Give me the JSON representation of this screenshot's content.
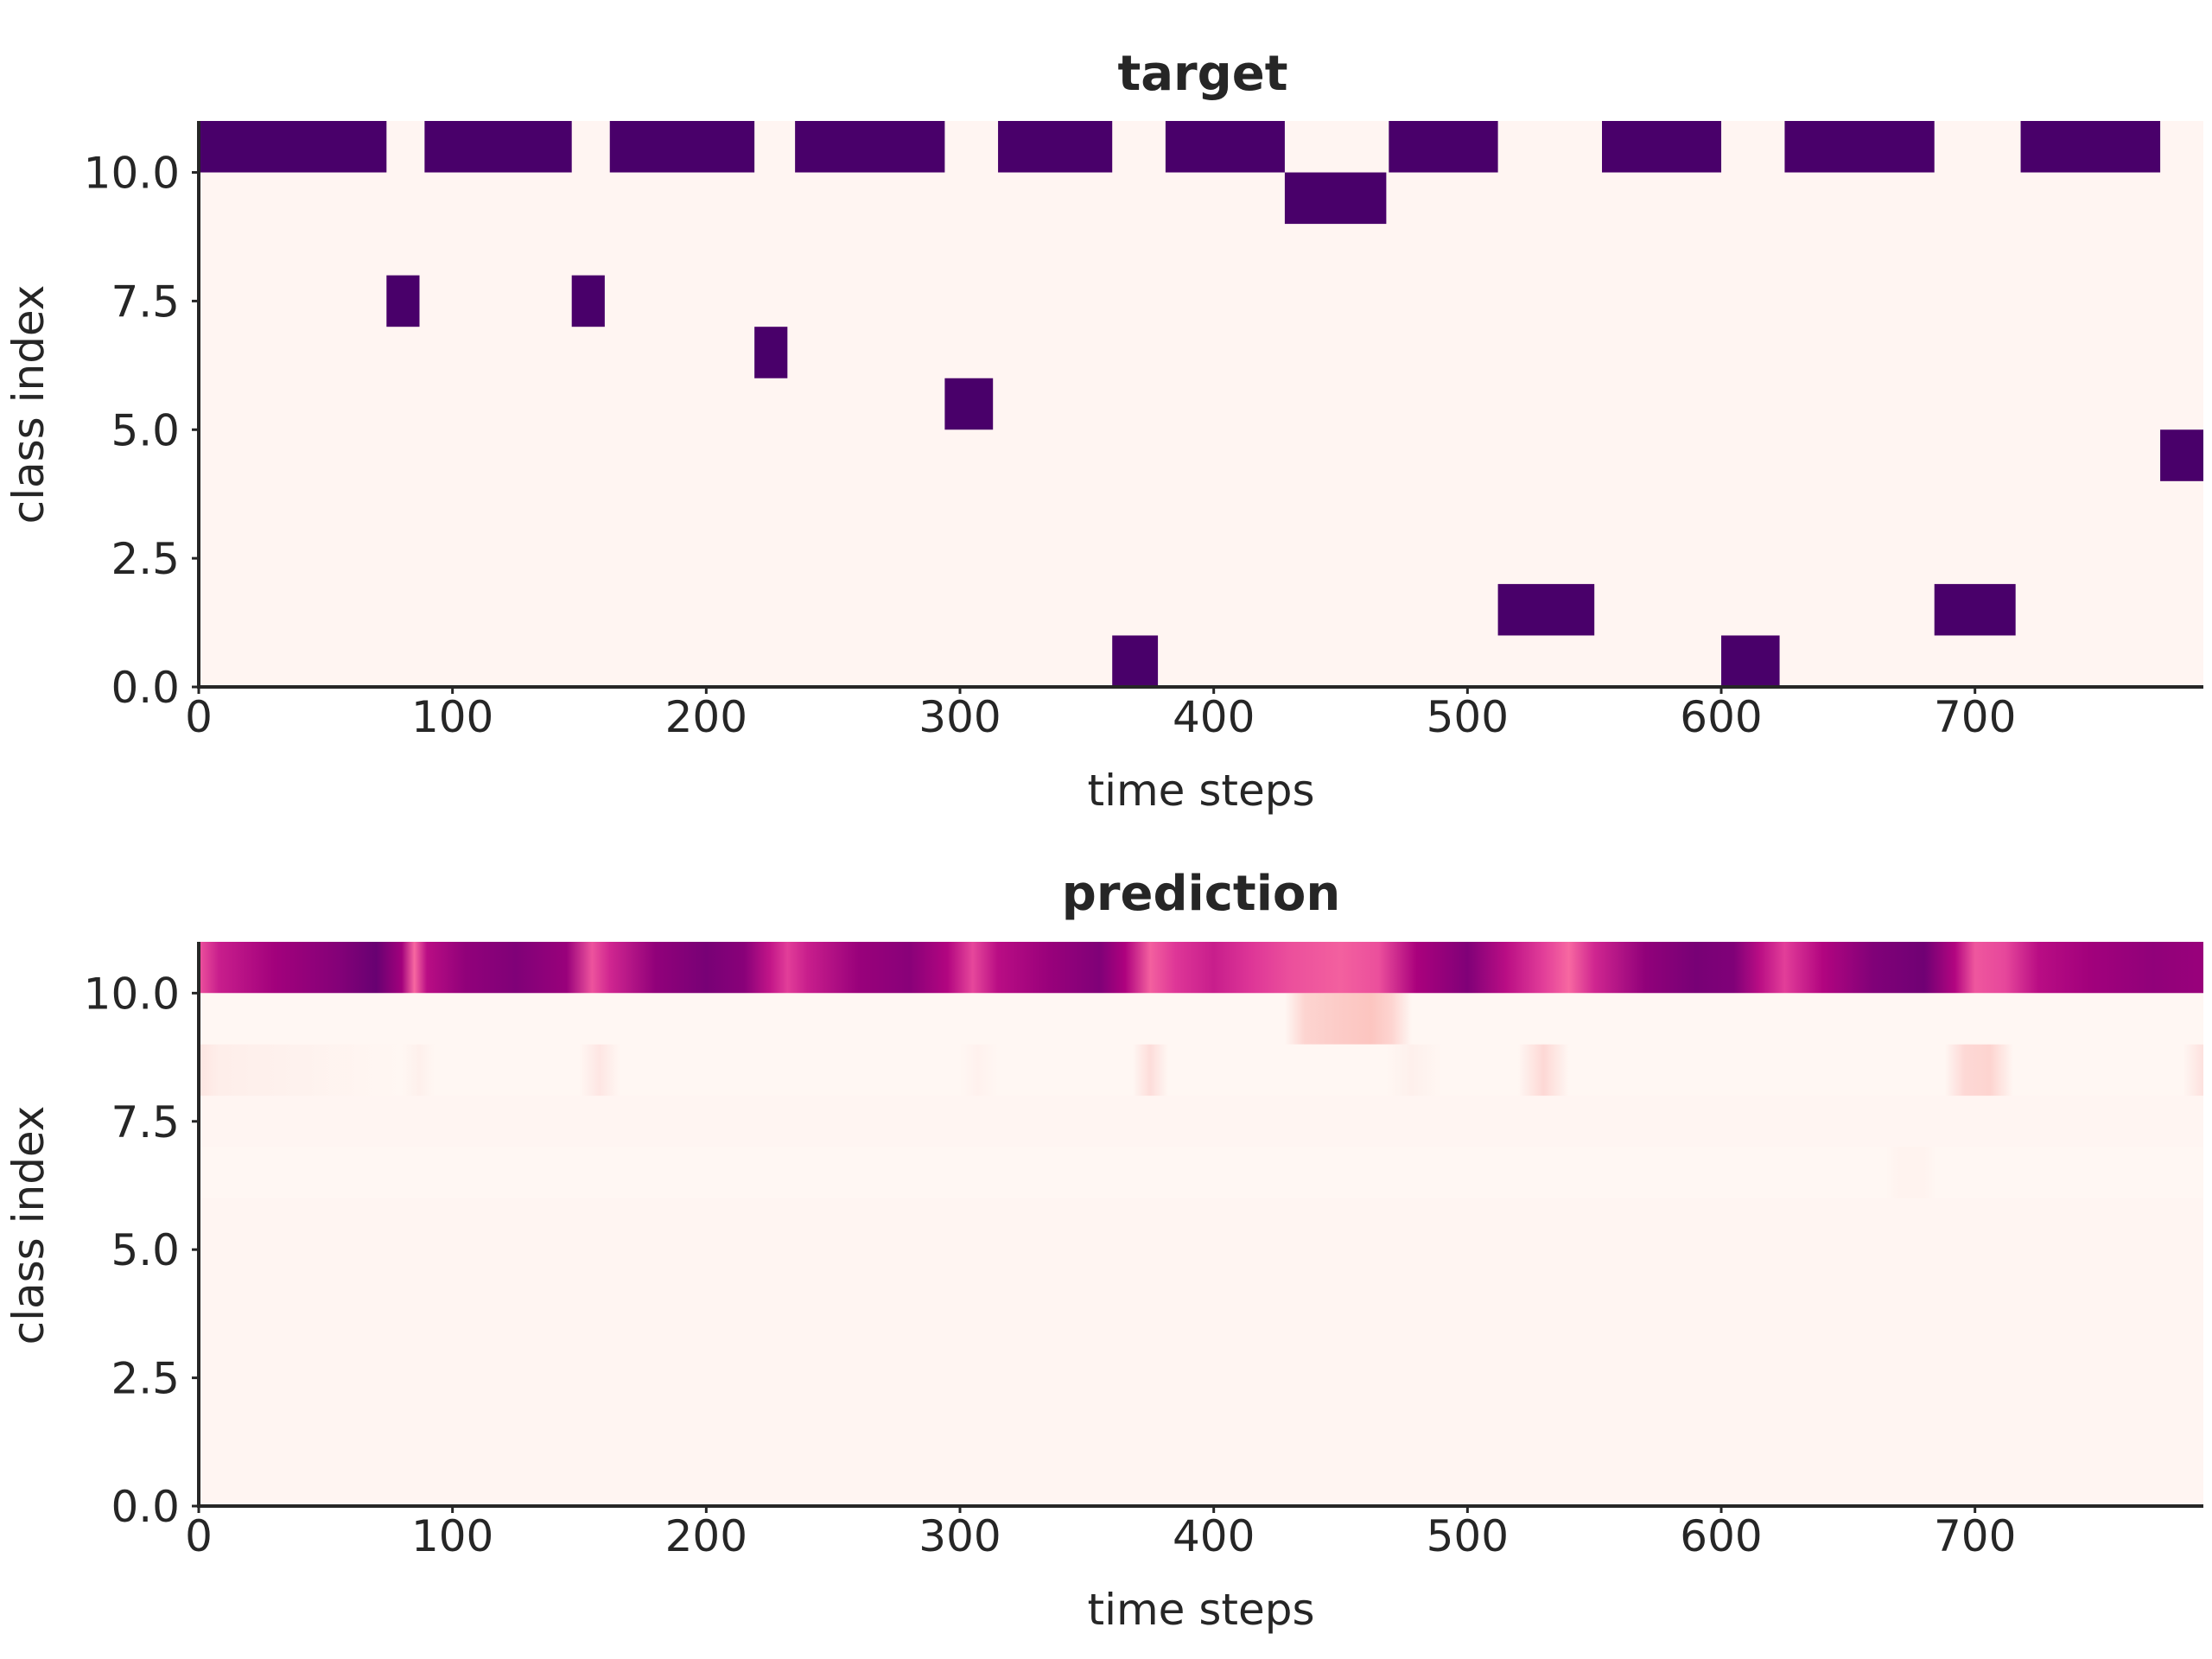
{
  "chart_data": [
    {
      "type": "heatmap",
      "title": "target",
      "xlabel": "time steps",
      "ylabel": "class index",
      "xlim": [
        0,
        790
      ],
      "ylim": [
        0,
        11
      ],
      "xticks": [
        0,
        100,
        200,
        300,
        400,
        500,
        600,
        700
      ],
      "yticks": [
        0.0,
        2.5,
        5.0,
        7.5,
        10.0
      ],
      "xtick_labels": [
        "0",
        "100",
        "200",
        "300",
        "400",
        "500",
        "600",
        "700"
      ],
      "ytick_labels": [
        "0.0",
        "2.5",
        "5.0",
        "7.5",
        "10.0"
      ],
      "colormap": "RdPu",
      "background_color": "#fff5f2",
      "active_color": "#49006a",
      "grid": false,
      "legend": "none",
      "segments": [
        {
          "class": 10,
          "start": 0,
          "end": 74,
          "value": 1
        },
        {
          "class": 7,
          "start": 74,
          "end": 87,
          "value": 1
        },
        {
          "class": 10,
          "start": 89,
          "end": 147,
          "value": 1
        },
        {
          "class": 7,
          "start": 147,
          "end": 160,
          "value": 1
        },
        {
          "class": 10,
          "start": 162,
          "end": 219,
          "value": 1
        },
        {
          "class": 6,
          "start": 219,
          "end": 232,
          "value": 1
        },
        {
          "class": 10,
          "start": 235,
          "end": 294,
          "value": 1
        },
        {
          "class": 5,
          "start": 294,
          "end": 313,
          "value": 1
        },
        {
          "class": 10,
          "start": 315,
          "end": 360,
          "value": 1
        },
        {
          "class": 0,
          "start": 360,
          "end": 378,
          "value": 1
        },
        {
          "class": 10,
          "start": 381,
          "end": 428,
          "value": 1
        },
        {
          "class": 9,
          "start": 428,
          "end": 468,
          "value": 1
        },
        {
          "class": 10,
          "start": 469,
          "end": 512,
          "value": 1
        },
        {
          "class": 1,
          "start": 512,
          "end": 550,
          "value": 1
        },
        {
          "class": 10,
          "start": 553,
          "end": 600,
          "value": 1
        },
        {
          "class": 0,
          "start": 600,
          "end": 623,
          "value": 1
        },
        {
          "class": 10,
          "start": 625,
          "end": 684,
          "value": 1
        },
        {
          "class": 1,
          "start": 684,
          "end": 716,
          "value": 1
        },
        {
          "class": 10,
          "start": 718,
          "end": 773,
          "value": 1
        },
        {
          "class": 4,
          "start": 773,
          "end": 790,
          "value": 1
        }
      ]
    },
    {
      "type": "heatmap",
      "title": "prediction",
      "xlabel": "time steps",
      "ylabel": "class index",
      "xlim": [
        0,
        790
      ],
      "ylim": [
        0,
        11
      ],
      "xticks": [
        0,
        100,
        200,
        300,
        400,
        500,
        600,
        700
      ],
      "yticks": [
        0.0,
        2.5,
        5.0,
        7.5,
        10.0
      ],
      "xtick_labels": [
        "0",
        "100",
        "200",
        "300",
        "400",
        "500",
        "600",
        "700"
      ],
      "ytick_labels": [
        "0.0",
        "2.5",
        "5.0",
        "7.5",
        "10.0"
      ],
      "colormap": "RdPu",
      "background_color": "#fff5f2",
      "grid": false,
      "legend": "none",
      "rows": [
        {
          "class": 10,
          "stops": [
            [
              0,
              0.55
            ],
            [
              8,
              0.68
            ],
            [
              30,
              0.78
            ],
            [
              55,
              0.85
            ],
            [
              70,
              0.92
            ],
            [
              80,
              0.78
            ],
            [
              85,
              0.5
            ],
            [
              90,
              0.72
            ],
            [
              105,
              0.82
            ],
            [
              125,
              0.86
            ],
            [
              145,
              0.8
            ],
            [
              155,
              0.55
            ],
            [
              162,
              0.66
            ],
            [
              180,
              0.82
            ],
            [
              200,
              0.88
            ],
            [
              215,
              0.84
            ],
            [
              225,
              0.7
            ],
            [
              232,
              0.6
            ],
            [
              240,
              0.68
            ],
            [
              260,
              0.8
            ],
            [
              280,
              0.84
            ],
            [
              295,
              0.74
            ],
            [
              305,
              0.58
            ],
            [
              315,
              0.72
            ],
            [
              335,
              0.8
            ],
            [
              355,
              0.86
            ],
            [
              365,
              0.75
            ],
            [
              375,
              0.52
            ],
            [
              385,
              0.62
            ],
            [
              400,
              0.68
            ],
            [
              415,
              0.62
            ],
            [
              430,
              0.56
            ],
            [
              450,
              0.52
            ],
            [
              465,
              0.56
            ],
            [
              480,
              0.76
            ],
            [
              500,
              0.86
            ],
            [
              515,
              0.72
            ],
            [
              530,
              0.6
            ],
            [
              540,
              0.5
            ],
            [
              550,
              0.66
            ],
            [
              570,
              0.82
            ],
            [
              590,
              0.88
            ],
            [
              605,
              0.86
            ],
            [
              615,
              0.72
            ],
            [
              625,
              0.6
            ],
            [
              640,
              0.74
            ],
            [
              660,
              0.86
            ],
            [
              680,
              0.9
            ],
            [
              692,
              0.74
            ],
            [
              700,
              0.54
            ],
            [
              712,
              0.58
            ],
            [
              725,
              0.72
            ],
            [
              745,
              0.78
            ],
            [
              770,
              0.82
            ],
            [
              790,
              0.8
            ]
          ]
        },
        {
          "class": 9,
          "stops": [
            [
              0,
              0.0
            ],
            [
              428,
              0.0
            ],
            [
              436,
              0.18
            ],
            [
              450,
              0.22
            ],
            [
              462,
              0.25
            ],
            [
              470,
              0.18
            ],
            [
              478,
              0.0
            ],
            [
              790,
              0.0
            ]
          ]
        },
        {
          "class": 8,
          "stops": [
            [
              0,
              0.1
            ],
            [
              8,
              0.05
            ],
            [
              80,
              0.0
            ],
            [
              87,
              0.04
            ],
            [
              93,
              0.0
            ],
            [
              150,
              0.0
            ],
            [
              158,
              0.09
            ],
            [
              166,
              0.0
            ],
            [
              300,
              0.0
            ],
            [
              307,
              0.03
            ],
            [
              315,
              0.0
            ],
            [
              368,
              0.0
            ],
            [
              375,
              0.14
            ],
            [
              382,
              0.0
            ],
            [
              468,
              0.0
            ],
            [
              478,
              0.04
            ],
            [
              490,
              0.0
            ],
            [
              520,
              0.0
            ],
            [
              530,
              0.16
            ],
            [
              540,
              0.0
            ],
            [
              688,
              0.0
            ],
            [
              696,
              0.16
            ],
            [
              706,
              0.18
            ],
            [
              715,
              0.0
            ],
            [
              782,
              0.0
            ],
            [
              790,
              0.12
            ]
          ]
        },
        {
          "class": 6,
          "stops": [
            [
              0,
              0.0
            ],
            [
              665,
              0.0
            ],
            [
              670,
              0.02
            ],
            [
              680,
              0.02
            ],
            [
              685,
              0.0
            ],
            [
              790,
              0.0
            ]
          ]
        }
      ]
    }
  ]
}
